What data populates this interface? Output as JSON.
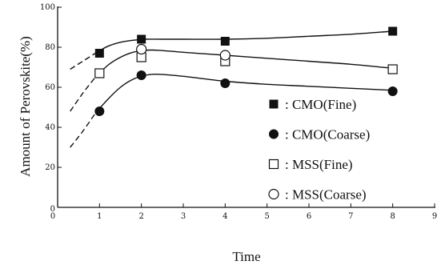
{
  "chart_data": {
    "type": "line",
    "xlabel": "Time",
    "ylabel": "Amount of Perovskite(%)",
    "xlim": [
      0,
      9
    ],
    "ylim": [
      0,
      100
    ],
    "x_ticks": [
      "0",
      "1",
      "2",
      "3",
      "4",
      "5",
      "6",
      "7",
      "8",
      "9"
    ],
    "y_ticks": [
      "0",
      "20",
      "40",
      "60",
      "80",
      "100"
    ],
    "grid": false,
    "legend_position": "lower-right",
    "series": [
      {
        "name": ": CMO(Fine)",
        "marker": "filled-square",
        "x": [
          1,
          2,
          4,
          8
        ],
        "y": [
          77,
          84,
          83,
          88
        ],
        "curve_x": [
          0.3,
          0.6,
          0.9,
          1.2,
          1.5,
          1.8,
          2.1,
          2.5,
          3,
          4,
          5,
          6,
          7,
          8
        ],
        "curve_y": [
          69,
          73,
          77,
          80.5,
          82.5,
          83.5,
          84,
          84,
          84,
          84,
          84.5,
          85.5,
          86.5,
          88
        ],
        "dashed_until_x": 0.9
      },
      {
        "name": ": CMO(Coarse)",
        "marker": "filled-circle",
        "x": [
          1,
          2,
          4,
          8
        ],
        "y": [
          48,
          66,
          62,
          58
        ],
        "curve_x": [
          0.3,
          0.6,
          0.9,
          1.2,
          1.5,
          1.8,
          2.1,
          2.4,
          3,
          4,
          5,
          6,
          7,
          8
        ],
        "curve_y": [
          30,
          38,
          47,
          54,
          60,
          64,
          66,
          66.5,
          65.5,
          63,
          61.5,
          60.5,
          59.5,
          58.5
        ],
        "dashed_until_x": 0.9
      },
      {
        "name": ": MSS(Fine)",
        "marker": "open-square",
        "x": [
          1,
          2,
          4,
          8
        ],
        "y": [
          67,
          75,
          73,
          69
        ],
        "curve_x": [
          0.3,
          0.6,
          0.9,
          1.2,
          1.5,
          1.8,
          2.1,
          2.4,
          3,
          4,
          5,
          6,
          7,
          8
        ],
        "curve_y": [
          48,
          57,
          65,
          71,
          75,
          77.5,
          78.5,
          78.5,
          77.5,
          76,
          74.5,
          73,
          71.5,
          69.5
        ],
        "dashed_until_x": 0.9
      },
      {
        "name": ": MSS(Coarse)",
        "marker": "open-circle",
        "x": [
          2,
          4
        ],
        "y": [
          79,
          76
        ]
      }
    ]
  }
}
